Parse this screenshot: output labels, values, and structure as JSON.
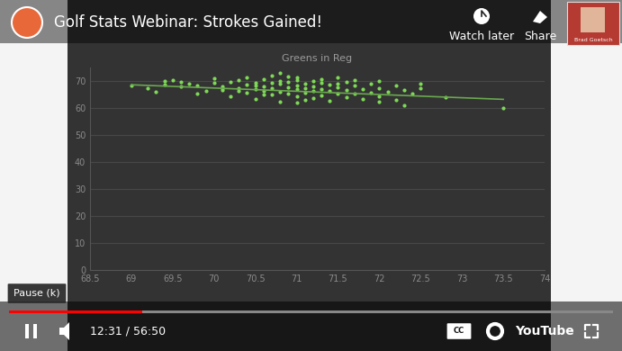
{
  "chart_data": {
    "type": "scatter",
    "title": "Greens in Reg",
    "x": [
      69.0,
      69.2,
      69.3,
      69.4,
      69.5,
      69.4,
      69.6,
      69.7,
      69.8,
      69.9,
      70.0,
      70.0,
      70.1,
      70.1,
      70.2,
      70.2,
      70.3,
      70.3,
      70.4,
      70.4,
      70.5,
      70.5,
      70.5,
      70.6,
      70.6,
      70.6,
      70.7,
      70.7,
      70.7,
      70.8,
      70.8,
      70.8,
      70.8,
      70.9,
      70.9,
      70.9,
      70.9,
      71.0,
      71.0,
      71.0,
      71.0,
      71.0,
      71.1,
      71.1,
      71.1,
      71.2,
      71.2,
      71.2,
      71.2,
      71.3,
      71.3,
      71.3,
      71.4,
      71.4,
      71.4,
      71.5,
      71.5,
      71.5,
      71.6,
      71.6,
      71.6,
      71.7,
      71.7,
      71.8,
      71.8,
      71.9,
      71.9,
      72.0,
      72.0,
      72.0,
      72.1,
      72.2,
      72.2,
      72.3,
      72.3,
      72.4,
      72.5,
      72.5,
      72.8,
      73.5,
      70.5,
      70.6,
      70.8,
      71.0,
      71.1,
      70.3,
      70.1,
      69.8,
      71.3,
      71.5,
      70.4,
      71.7,
      69.6,
      72.0,
      70.7
    ],
    "values": [
      68.5,
      67.2,
      66.0,
      70.0,
      70.5,
      68.8,
      67.9,
      69.0,
      68.3,
      66.5,
      69.5,
      71.0,
      68.0,
      66.8,
      69.8,
      64.5,
      70.2,
      67.5,
      68.7,
      65.8,
      69.2,
      67.0,
      63.5,
      70.8,
      68.1,
      66.3,
      69.5,
      67.4,
      64.9,
      73.0,
      68.9,
      66.0,
      62.5,
      71.8,
      69.8,
      67.8,
      65.5,
      70.5,
      68.5,
      66.9,
      64.2,
      62.0,
      69.0,
      67.2,
      65.8,
      70.0,
      68.0,
      66.2,
      63.8,
      69.3,
      67.0,
      64.8,
      68.6,
      66.5,
      62.8,
      71.5,
      67.8,
      65.5,
      69.8,
      66.8,
      64.0,
      68.2,
      65.2,
      67.0,
      63.5,
      69.0,
      65.8,
      70.0,
      67.3,
      64.5,
      66.0,
      68.5,
      63.0,
      66.8,
      61.0,
      65.5,
      69.0,
      67.5,
      64.0,
      60.0,
      68.2,
      65.0,
      70.0,
      71.2,
      63.0,
      66.2,
      67.2,
      65.5,
      70.6,
      69.0,
      71.5,
      70.2,
      69.6,
      62.2,
      72.0
    ],
    "color": "#7ed957",
    "marker": "o",
    "trendline": {
      "type": "line",
      "x": [
        69,
        73.5
      ],
      "values": [
        68.6,
        63.2
      ],
      "color": "#6aa84f"
    },
    "xlim": [
      68.5,
      74
    ],
    "xticks": [
      68.5,
      69,
      69.5,
      70,
      70.5,
      71,
      71.5,
      72,
      72.5,
      73,
      73.5,
      74
    ],
    "ylim": [
      0,
      75
    ],
    "yticks": [
      0,
      10,
      20,
      30,
      40,
      50,
      60,
      70
    ],
    "grid": true
  },
  "video": {
    "title": "Golf Stats Webinar: Strokes Gained!",
    "buttons": [
      "Watch later",
      "Share"
    ],
    "presenter": "Brad Goetsch",
    "tooltip": "Pause (k)",
    "time": "12:31 / 56:50",
    "captions": "CC",
    "brand": "YouTube"
  }
}
